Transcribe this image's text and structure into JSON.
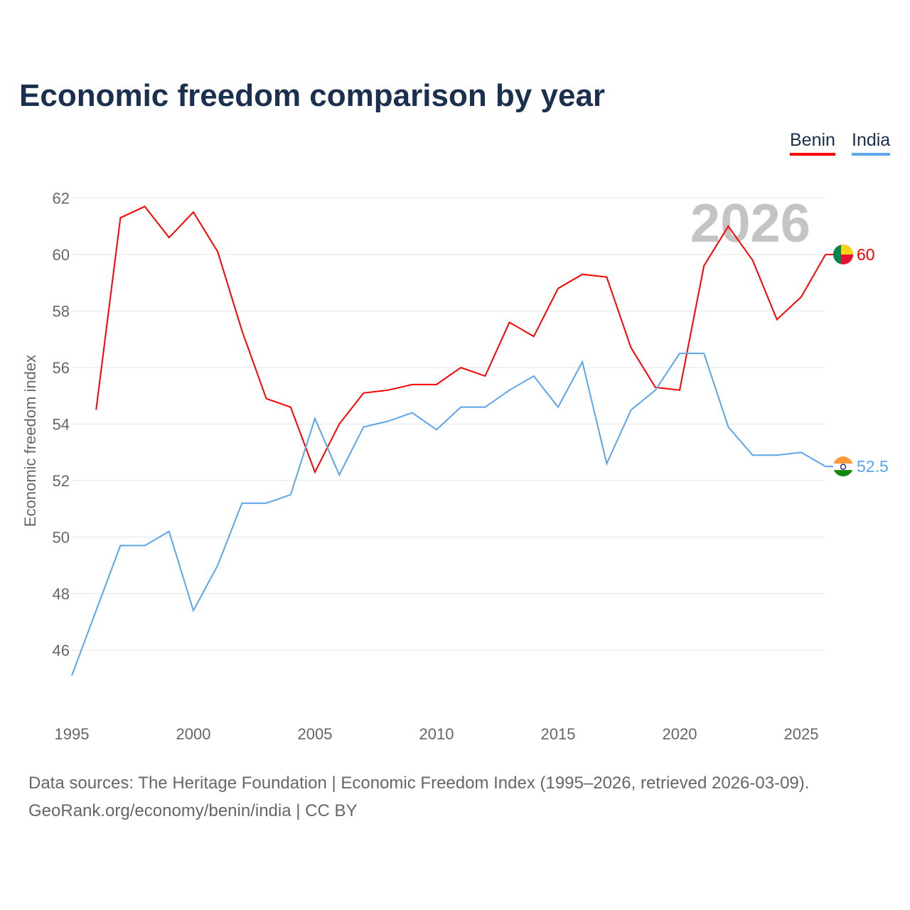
{
  "title": "Economic freedom comparison by year",
  "watermark_year": "2026",
  "source_line1": "Data sources: The Heritage Foundation | Economic Freedom Index (1995–2026, retrieved 2026-03-09).",
  "source_line2": "GeoRank.org/economy/benin/india | CC BY",
  "chart_data": {
    "type": "line",
    "title": "Economic freedom comparison by year",
    "xlabel": "",
    "ylabel": "Economic freedom index",
    "xlim": [
      1995,
      2026
    ],
    "ylim": [
      44.5,
      62.5
    ],
    "xticks": [
      1995,
      2000,
      2005,
      2010,
      2015,
      2020,
      2025
    ],
    "yticks": [
      46,
      48,
      50,
      52,
      54,
      56,
      58,
      60,
      62
    ],
    "grid": true,
    "legend": "top-right",
    "series": [
      {
        "name": "Benin",
        "color": "#ff0000",
        "end_label": "60",
        "x": [
          1996,
          1997,
          1998,
          1999,
          2000,
          2001,
          2002,
          2003,
          2004,
          2005,
          2006,
          2007,
          2008,
          2009,
          2010,
          2011,
          2012,
          2013,
          2014,
          2015,
          2016,
          2017,
          2018,
          2019,
          2020,
          2021,
          2022,
          2023,
          2024,
          2025,
          2026
        ],
        "values": [
          54.5,
          61.3,
          61.7,
          60.6,
          61.5,
          60.1,
          57.3,
          54.9,
          54.6,
          52.3,
          54.0,
          55.1,
          55.2,
          55.4,
          55.4,
          56.0,
          55.7,
          57.6,
          57.1,
          58.8,
          59.3,
          59.2,
          56.7,
          55.3,
          55.2,
          59.6,
          61.0,
          59.8,
          57.7,
          58.5,
          60.0
        ]
      },
      {
        "name": "India",
        "color": "#5aa5eb",
        "end_label": "52.5",
        "x": [
          1995,
          1996,
          1997,
          1998,
          1999,
          2000,
          2001,
          2002,
          2003,
          2004,
          2005,
          2006,
          2007,
          2008,
          2009,
          2010,
          2011,
          2012,
          2013,
          2014,
          2015,
          2016,
          2017,
          2018,
          2019,
          2020,
          2021,
          2022,
          2023,
          2024,
          2025,
          2026
        ],
        "values": [
          45.1,
          47.4,
          49.7,
          49.7,
          50.2,
          47.4,
          49.0,
          51.2,
          51.2,
          51.5,
          54.2,
          52.2,
          53.9,
          54.1,
          54.4,
          53.8,
          54.6,
          54.6,
          55.2,
          55.7,
          54.6,
          56.2,
          52.6,
          54.5,
          55.2,
          56.5,
          56.5,
          53.9,
          52.9,
          52.9,
          53.0,
          52.5
        ]
      }
    ]
  }
}
